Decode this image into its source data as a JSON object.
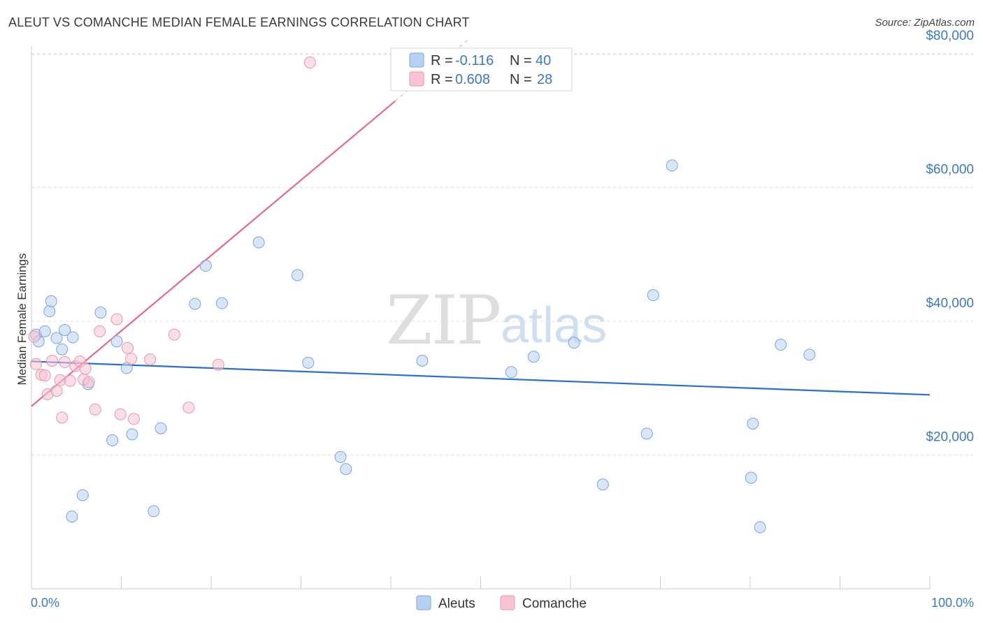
{
  "title": "ALEUT VS COMANCHE MEDIAN FEMALE EARNINGS CORRELATION CHART",
  "source": "Source: ZipAtlas.com",
  "watermark": {
    "zip": "ZIP",
    "atlas": "atlas"
  },
  "colors": {
    "aleut_fill": "#b8d1f3",
    "aleut_stroke": "#7aa6e0",
    "aleut_line": "#2a6fd0",
    "comanche_fill": "#f8c4d2",
    "comanche_stroke": "#ec94ae",
    "comanche_line": "#e8678f",
    "axis_text": "#3d78c8",
    "grid": "#dddddd"
  },
  "legend": {
    "rows": [
      {
        "r_label": "R = ",
        "r_value": "-0.116",
        "n_label": "N = ",
        "n_value": "40"
      },
      {
        "r_label": "R = ",
        "r_value": "0.608",
        "n_label": "N = ",
        "n_value": "28"
      }
    ]
  },
  "bottom_legend": [
    "Aleuts",
    "Comanche"
  ],
  "chart_data": {
    "type": "scatter",
    "title": "ALEUT VS COMANCHE MEDIAN FEMALE EARNINGS CORRELATION CHART",
    "xlabel": "",
    "ylabel": "Median Female Earnings",
    "xlim": [
      0,
      100
    ],
    "ylim": [
      0,
      82000
    ],
    "x_tick_labels": [
      "0.0%",
      "100.0%"
    ],
    "y_ticks": [
      20000,
      40000,
      60000,
      80000
    ],
    "y_tick_labels": [
      "$20,000",
      "$40,000",
      "$60,000",
      "$80,000"
    ],
    "grid": true,
    "legend_position": "top-center",
    "series": [
      {
        "name": "Aleuts",
        "R": -0.116,
        "N": 40,
        "trend": {
          "x": [
            0,
            100
          ],
          "y": [
            34000,
            29000
          ],
          "solid_until": 100
        },
        "points": [
          {
            "x": 0.5,
            "y": 38000
          },
          {
            "x": 0.8,
            "y": 37000
          },
          {
            "x": 1.5,
            "y": 38500
          },
          {
            "x": 2.0,
            "y": 41500
          },
          {
            "x": 2.2,
            "y": 43000
          },
          {
            "x": 2.8,
            "y": 37500
          },
          {
            "x": 3.4,
            "y": 35800
          },
          {
            "x": 3.7,
            "y": 38700
          },
          {
            "x": 4.6,
            "y": 37600
          },
          {
            "x": 4.5,
            "y": 10800
          },
          {
            "x": 5.7,
            "y": 14000
          },
          {
            "x": 6.3,
            "y": 30600
          },
          {
            "x": 7.7,
            "y": 41300
          },
          {
            "x": 9.0,
            "y": 22200
          },
          {
            "x": 9.5,
            "y": 37000
          },
          {
            "x": 10.6,
            "y": 33000
          },
          {
            "x": 11.2,
            "y": 23100
          },
          {
            "x": 13.6,
            "y": 11600
          },
          {
            "x": 14.4,
            "y": 24000
          },
          {
            "x": 18.2,
            "y": 42600
          },
          {
            "x": 19.4,
            "y": 48300
          },
          {
            "x": 21.2,
            "y": 42700
          },
          {
            "x": 25.3,
            "y": 51800
          },
          {
            "x": 29.6,
            "y": 46900
          },
          {
            "x": 30.8,
            "y": 33800
          },
          {
            "x": 34.4,
            "y": 19700
          },
          {
            "x": 35.0,
            "y": 17900
          },
          {
            "x": 43.5,
            "y": 34100
          },
          {
            "x": 53.4,
            "y": 32400
          },
          {
            "x": 55.9,
            "y": 34700
          },
          {
            "x": 60.4,
            "y": 36800
          },
          {
            "x": 63.6,
            "y": 15600
          },
          {
            "x": 68.5,
            "y": 23200
          },
          {
            "x": 69.2,
            "y": 43900
          },
          {
            "x": 71.3,
            "y": 63300
          },
          {
            "x": 80.1,
            "y": 16600
          },
          {
            "x": 80.3,
            "y": 24700
          },
          {
            "x": 81.1,
            "y": 9200
          },
          {
            "x": 83.4,
            "y": 36500
          },
          {
            "x": 86.6,
            "y": 35000
          }
        ]
      },
      {
        "name": "Comanche",
        "R": 0.608,
        "N": 28,
        "trend": {
          "x": [
            0,
            100
          ],
          "y": [
            27300,
            140000
          ],
          "solid_until": 40.5
        },
        "points": [
          {
            "x": 0.3,
            "y": 37700
          },
          {
            "x": 0.5,
            "y": 33600
          },
          {
            "x": 1.1,
            "y": 32000
          },
          {
            "x": 1.5,
            "y": 31900
          },
          {
            "x": 1.8,
            "y": 29100
          },
          {
            "x": 2.3,
            "y": 34100
          },
          {
            "x": 2.8,
            "y": 29600
          },
          {
            "x": 3.2,
            "y": 31200
          },
          {
            "x": 3.4,
            "y": 25600
          },
          {
            "x": 3.7,
            "y": 33900
          },
          {
            "x": 4.3,
            "y": 31100
          },
          {
            "x": 4.9,
            "y": 33300
          },
          {
            "x": 5.4,
            "y": 34000
          },
          {
            "x": 5.8,
            "y": 31300
          },
          {
            "x": 6.0,
            "y": 32900
          },
          {
            "x": 6.4,
            "y": 30900
          },
          {
            "x": 7.1,
            "y": 26800
          },
          {
            "x": 7.6,
            "y": 38500
          },
          {
            "x": 9.5,
            "y": 40300
          },
          {
            "x": 9.9,
            "y": 26100
          },
          {
            "x": 10.7,
            "y": 36000
          },
          {
            "x": 11.1,
            "y": 34400
          },
          {
            "x": 11.4,
            "y": 25400
          },
          {
            "x": 13.2,
            "y": 34300
          },
          {
            "x": 15.9,
            "y": 38000
          },
          {
            "x": 17.5,
            "y": 27100
          },
          {
            "x": 20.8,
            "y": 33500
          },
          {
            "x": 31.0,
            "y": 78700
          }
        ]
      }
    ]
  }
}
